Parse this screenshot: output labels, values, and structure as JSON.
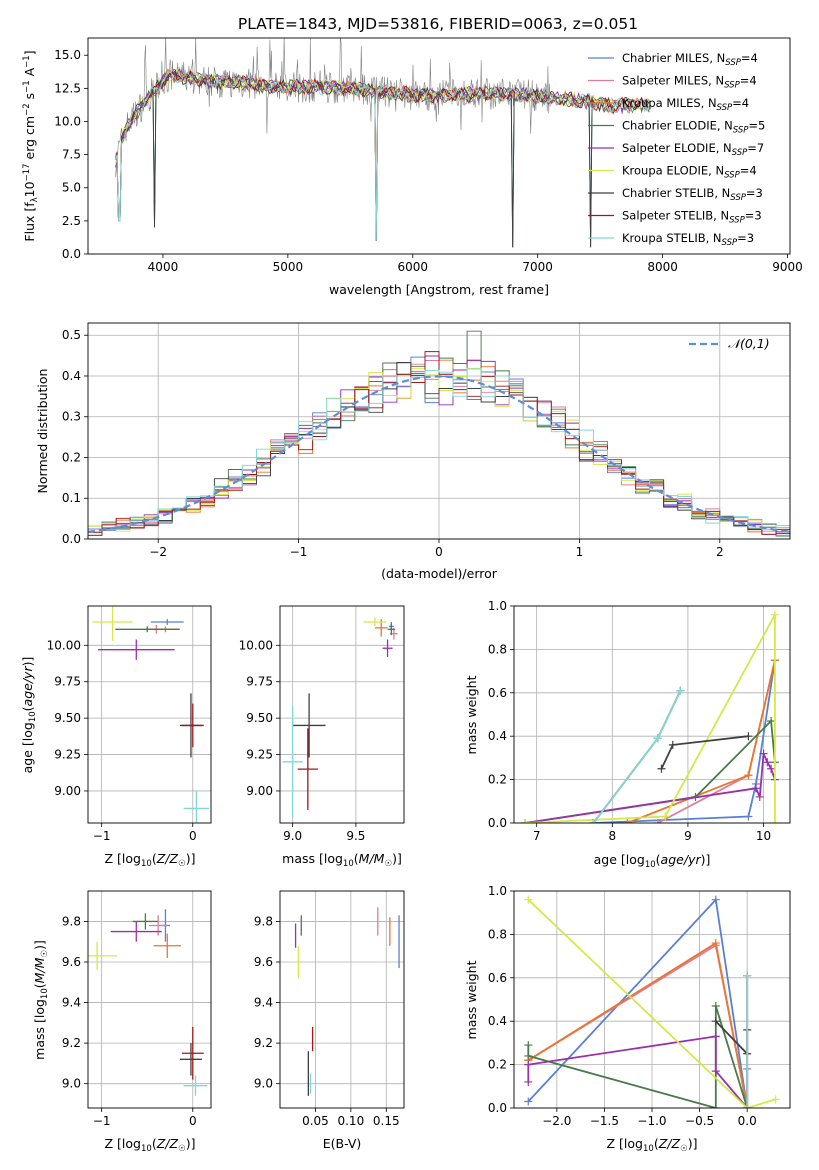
{
  "figure_title": "PLATE=1843, MJD=53816, FIBERID=0063, z=0.051",
  "models": [
    {
      "key": "cm",
      "color": "#5b7fd6",
      "label": "Chabrier MILES, N",
      "nssp": "=4"
    },
    {
      "key": "sm",
      "color": "#e07ba0",
      "label": "Salpeter MILES, N",
      "nssp": "=4"
    },
    {
      "key": "km",
      "color": "#e8772e",
      "label": "Kroupa MILES, N",
      "nssp": "=4"
    },
    {
      "key": "ce",
      "color": "#4a7a4a",
      "label": "Chabrier ELODIE, N",
      "nssp": "=5"
    },
    {
      "key": "se",
      "color": "#9b2fae",
      "label": "Salpeter ELODIE, N",
      "nssp": "=7"
    },
    {
      "key": "ke",
      "color": "#d4e84a",
      "label": "Kroupa ELODIE, N",
      "nssp": "=4"
    },
    {
      "key": "cs",
      "color": "#404040",
      "label": "Chabrier STELIB, N",
      "nssp": "=3"
    },
    {
      "key": "ss",
      "color": "#a01818",
      "label": "Salpeter STELIB, N",
      "nssp": "=3"
    },
    {
      "key": "ks",
      "color": "#7fd8d8",
      "label": "Kroupa STELIB, N",
      "nssp": "=3"
    }
  ],
  "chart_data": [
    {
      "id": "spectrum",
      "type": "line",
      "xlabel": "wavelength [Angstrom, rest frame]",
      "ylabel": "Flux [f_λ 10^-17 erg cm^-2 s^-1 A^-1]",
      "xlim": [
        3400,
        9020
      ],
      "ylim": [
        0,
        16.3
      ],
      "xticks": [
        4000,
        5000,
        6000,
        7000,
        8000,
        9000
      ],
      "yticks": [
        0.0,
        2.5,
        5.0,
        7.5,
        10.0,
        12.5,
        15.0
      ],
      "grid": false,
      "legend": "top-right",
      "data_points": [
        [
          3620,
          7.0
        ],
        [
          3700,
          9.5
        ],
        [
          3850,
          11.5
        ],
        [
          3950,
          12.5
        ],
        [
          4050,
          13.5
        ],
        [
          4200,
          13.3
        ],
        [
          4400,
          13.0
        ],
        [
          4600,
          13.0
        ],
        [
          4800,
          12.7
        ],
        [
          5000,
          12.6
        ],
        [
          5200,
          12.6
        ],
        [
          5500,
          12.5
        ],
        [
          5800,
          12.2
        ],
        [
          6000,
          12.0
        ],
        [
          6300,
          12.0
        ],
        [
          6600,
          12.1
        ],
        [
          6900,
          12.0
        ],
        [
          7200,
          11.7
        ],
        [
          7420,
          11.5
        ],
        [
          7600,
          11.2
        ],
        [
          7900,
          11.3
        ]
      ],
      "data_range": [
        3620,
        7900
      ],
      "noise_range": [
        3620,
        7100
      ],
      "dips": [
        [
          3650,
          2.5
        ],
        [
          3930,
          2.0
        ],
        [
          5710,
          1.0
        ],
        [
          6800,
          0.5
        ],
        [
          7420,
          0.5
        ]
      ]
    },
    {
      "id": "residuals",
      "type": "histogram",
      "xlabel": "(data-model)/error",
      "ylabel": "Normed distribution",
      "xlim": [
        -2.5,
        2.5
      ],
      "ylim": [
        0,
        0.53
      ],
      "xticks": [
        -2,
        -1,
        0,
        1,
        2
      ],
      "yticks": [
        0.0,
        0.1,
        0.2,
        0.3,
        0.4,
        0.5
      ],
      "grid": true,
      "legend": "top-right",
      "reference": "𝒩(0,1)",
      "bin_width": 0.1
    },
    {
      "id": "age_vs_Z",
      "type": "errorbar",
      "xlabel": "Z [log10(Z/Z☉)]",
      "ylabel": "age  [log10(age/yr)]",
      "xlim": [
        -1.15,
        0.2
      ],
      "ylim": [
        8.78,
        10.27
      ],
      "xticks": [
        -1,
        0
      ],
      "yticks": [
        9.0,
        9.25,
        9.5,
        9.75,
        10.0
      ],
      "grid": true,
      "points": [
        {
          "m": "cm",
          "x": -0.28,
          "y": 10.16,
          "ex": 0.18,
          "ey": 0.02
        },
        {
          "m": "sm",
          "x": -0.4,
          "y": 10.11,
          "ex": 0.1,
          "ey": 0.03
        },
        {
          "m": "km",
          "x": -0.3,
          "y": 10.11,
          "ex": 0.16,
          "ey": 0.02
        },
        {
          "m": "ce",
          "x": -0.5,
          "y": 10.11,
          "ex": 0.35,
          "ey": 0.02
        },
        {
          "m": "se",
          "x": -0.62,
          "y": 9.97,
          "ex": 0.42,
          "ey": 0.07
        },
        {
          "m": "ke",
          "x": -0.88,
          "y": 10.16,
          "ex": 0.22,
          "ey": 0.13
        },
        {
          "m": "cs",
          "x": -0.02,
          "y": 9.45,
          "ex": 0.12,
          "ey": 0.22
        },
        {
          "m": "ss",
          "x": 0.0,
          "y": 9.45,
          "ex": 0.12,
          "ey": 0.15
        },
        {
          "m": "ks",
          "x": 0.04,
          "y": 8.88,
          "ex": 0.14,
          "ey": 0.12
        }
      ]
    },
    {
      "id": "age_vs_mass",
      "type": "errorbar",
      "xlabel": "mass [log10(M/M☉)]",
      "ylabel": "",
      "xlim": [
        8.9,
        9.88
      ],
      "ylim": [
        8.78,
        10.27
      ],
      "xticks": [
        9.0,
        9.5
      ],
      "yticks": [
        9.0,
        9.25,
        9.5,
        9.75,
        10.0
      ],
      "grid": true,
      "points": [
        {
          "m": "cm",
          "x": 9.78,
          "y": 10.13,
          "ex": 0.02,
          "ey": 0.03
        },
        {
          "m": "sm",
          "x": 9.8,
          "y": 10.08,
          "ex": 0.03,
          "ey": 0.04
        },
        {
          "m": "km",
          "x": 9.7,
          "y": 10.12,
          "ex": 0.05,
          "ey": 0.06
        },
        {
          "m": "ce",
          "x": 9.78,
          "y": 10.11,
          "ex": 0.03,
          "ey": 0.04
        },
        {
          "m": "se",
          "x": 9.75,
          "y": 9.98,
          "ex": 0.04,
          "ey": 0.06
        },
        {
          "m": "ke",
          "x": 9.65,
          "y": 10.16,
          "ex": 0.09,
          "ey": 0.03
        },
        {
          "m": "cs",
          "x": 9.13,
          "y": 9.45,
          "ex": 0.13,
          "ey": 0.22
        },
        {
          "m": "ss",
          "x": 9.12,
          "y": 9.15,
          "ex": 0.08,
          "ey": 0.28
        },
        {
          "m": "ks",
          "x": 9.0,
          "y": 9.2,
          "ex": 0.08,
          "ey": 0.38
        }
      ]
    },
    {
      "id": "weight_vs_age",
      "type": "line",
      "xlabel": "age  [log10(age/yr)]",
      "ylabel": "mass weight",
      "xlim": [
        6.7,
        10.35
      ],
      "ylim": [
        0,
        1.0
      ],
      "xticks": [
        7,
        8,
        9,
        10
      ],
      "yticks": [
        0.0,
        0.2,
        0.4,
        0.6,
        0.8,
        1.0
      ],
      "grid": true,
      "series": [
        {
          "m": "cm",
          "x": [
            7.75,
            9.8,
            9.9,
            10.15
          ],
          "y": [
            0.0,
            0.03,
            0.18,
            0.75
          ]
        },
        {
          "m": "sm",
          "x": [
            8.6,
            9.8,
            10.15
          ],
          "y": [
            0.0,
            0.22,
            0.75
          ]
        },
        {
          "m": "km",
          "x": [
            8.2,
            9.8,
            10.15
          ],
          "y": [
            0.0,
            0.22,
            0.75
          ]
        },
        {
          "m": "ce",
          "x": [
            6.85,
            9.1,
            10.1,
            10.15
          ],
          "y": [
            0.0,
            0.12,
            0.47,
            0.28
          ]
        },
        {
          "m": "se",
          "x": [
            6.85,
            9.9,
            9.95,
            10.0,
            10.05,
            10.1,
            10.15
          ],
          "y": [
            0.0,
            0.16,
            0.12,
            0.32,
            0.28,
            0.25,
            0.2
          ]
        },
        {
          "m": "ke",
          "x": [
            6.85,
            8.7,
            10.15,
            10.15
          ],
          "y": [
            0.0,
            0.03,
            0.96,
            0.0
          ]
        },
        {
          "m": "cs",
          "x": [
            8.65,
            8.8,
            9.8
          ],
          "y": [
            0.25,
            0.36,
            0.4
          ]
        },
        {
          "m": "ss",
          "x": [
            7.75,
            8.6,
            8.9
          ],
          "y": [
            0.0,
            0.39,
            0.61
          ]
        },
        {
          "m": "ks",
          "x": [
            7.75,
            8.6,
            8.9
          ],
          "y": [
            0.0,
            0.39,
            0.61
          ]
        }
      ]
    },
    {
      "id": "mass_vs_Z",
      "type": "errorbar",
      "xlabel": "Z [log10(Z/Z☉)]",
      "ylabel": "mass [log10(M/M☉)]",
      "xlim": [
        -1.15,
        0.2
      ],
      "ylim": [
        8.88,
        9.95
      ],
      "xticks": [
        -1,
        0
      ],
      "yticks": [
        9.0,
        9.2,
        9.4,
        9.6,
        9.8
      ],
      "grid": true,
      "points": [
        {
          "m": "cm",
          "x": -0.3,
          "y": 9.78,
          "ex": 0.05,
          "ey": 0.08
        },
        {
          "m": "sm",
          "x": -0.38,
          "y": 9.78,
          "ex": 0.1,
          "ey": 0.05
        },
        {
          "m": "km",
          "x": -0.28,
          "y": 9.68,
          "ex": 0.15,
          "ey": 0.06
        },
        {
          "m": "ce",
          "x": -0.52,
          "y": 9.8,
          "ex": 0.14,
          "ey": 0.04
        },
        {
          "m": "se",
          "x": -0.62,
          "y": 9.75,
          "ex": 0.28,
          "ey": 0.05
        },
        {
          "m": "ke",
          "x": -1.05,
          "y": 9.63,
          "ex": 0.22,
          "ey": 0.07
        },
        {
          "m": "cs",
          "x": -0.02,
          "y": 9.12,
          "ex": 0.12,
          "ey": 0.08
        },
        {
          "m": "ss",
          "x": 0.0,
          "y": 9.15,
          "ex": 0.12,
          "ey": 0.13
        },
        {
          "m": "ks",
          "x": 0.03,
          "y": 8.99,
          "ex": 0.13,
          "ey": 0.05
        }
      ]
    },
    {
      "id": "mass_vs_ebv",
      "type": "errorbar",
      "xlabel": "E(B-V)",
      "ylabel": "",
      "xlim": [
        0.0,
        0.175
      ],
      "ylim": [
        8.88,
        9.95
      ],
      "xticks": [
        0.05,
        0.1,
        0.15
      ],
      "yticks": [
        9.0,
        9.2,
        9.4,
        9.6,
        9.8
      ],
      "grid": true,
      "points": [
        {
          "m": "cm",
          "x": 0.168,
          "y": 9.7,
          "ex": 0.0,
          "ey": 0.13
        },
        {
          "m": "sm",
          "x": 0.138,
          "y": 9.8,
          "ex": 0.0,
          "ey": 0.07
        },
        {
          "m": "km",
          "x": 0.155,
          "y": 9.75,
          "ex": 0.0,
          "ey": 0.07
        },
        {
          "m": "ce",
          "x": 0.03,
          "y": 9.78,
          "ex": 0.0,
          "ey": 0.05
        },
        {
          "m": "se",
          "x": 0.022,
          "y": 9.73,
          "ex": 0.0,
          "ey": 0.06
        },
        {
          "m": "ke",
          "x": 0.026,
          "y": 9.6,
          "ex": 0.0,
          "ey": 0.08
        },
        {
          "m": "cs",
          "x": 0.04,
          "y": 9.05,
          "ex": 0.0,
          "ey": 0.11
        },
        {
          "m": "ss",
          "x": 0.046,
          "y": 9.22,
          "ex": 0.0,
          "ey": 0.06
        },
        {
          "m": "ks",
          "x": 0.043,
          "y": 9.0,
          "ex": 0.0,
          "ey": 0.05
        }
      ]
    },
    {
      "id": "weight_vs_Z",
      "type": "line",
      "xlabel": "Z [log10(Z/Z☉)]",
      "ylabel": "mass weight",
      "xlim": [
        -2.45,
        0.45
      ],
      "ylim": [
        0,
        1.0
      ],
      "xticks": [
        -2.0,
        -1.5,
        -1.0,
        -0.5,
        0.0
      ],
      "yticks": [
        0.0,
        0.2,
        0.4,
        0.6,
        0.8,
        1.0
      ],
      "grid": true,
      "series": [
        {
          "m": "cm",
          "x": [
            -2.3,
            -0.33,
            0.0,
            0.0
          ],
          "y": [
            0.03,
            0.96,
            0.0,
            0.18
          ]
        },
        {
          "m": "sm",
          "x": [
            -2.3,
            -0.33,
            0.0
          ],
          "y": [
            0.22,
            0.75,
            0.0
          ]
        },
        {
          "m": "km",
          "x": [
            -2.3,
            -0.33,
            0.0
          ],
          "y": [
            0.22,
            0.76,
            0.0
          ]
        },
        {
          "m": "ce",
          "x": [
            -2.3,
            -2.3,
            -0.33,
            -0.33,
            0.0
          ],
          "y": [
            0.29,
            0.24,
            0.0,
            0.47,
            0.0
          ]
        },
        {
          "m": "se",
          "x": [
            -2.3,
            -2.3,
            -0.33,
            -0.33,
            0.0
          ],
          "y": [
            0.12,
            0.2,
            0.33,
            0.17,
            0.0
          ]
        },
        {
          "m": "ke",
          "x": [
            -2.3,
            0.0,
            0.3
          ],
          "y": [
            0.96,
            0.0,
            0.04
          ]
        },
        {
          "m": "cs",
          "x": [
            -0.33,
            0.0,
            0.0
          ],
          "y": [
            0.4,
            0.25,
            0.36
          ]
        },
        {
          "m": "ss",
          "x": [
            0.0,
            0.0
          ],
          "y": [
            0.0,
            0.61
          ]
        },
        {
          "m": "ks",
          "x": [
            0.0,
            0.0
          ],
          "y": [
            0.0,
            0.61
          ]
        }
      ]
    }
  ]
}
